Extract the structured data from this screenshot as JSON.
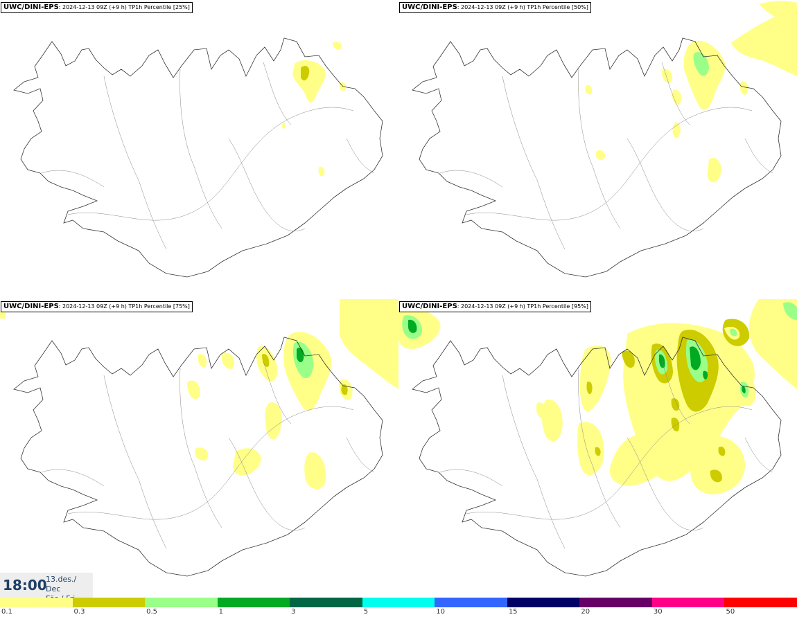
{
  "panels": [
    {
      "model": "UWC/DINI-EPS",
      "run": ": 2024-12-13 09Z (+9 h)",
      "field": " TP1h Percentile [25%]"
    },
    {
      "model": "UWC/DINI-EPS",
      "run": ": 2024-12-13 09Z (+9 h)",
      "field": " TP1h Percentile [50%]"
    },
    {
      "model": "UWC/DINI-EPS",
      "run": ": 2024-12-13 09Z (+9 h)",
      "field": " TP1h Percentile [75%]"
    },
    {
      "model": "UWC/DINI-EPS",
      "run": ": 2024-12-13 09Z (+9 h)",
      "field": " TP1h Percentile [95%]"
    }
  ],
  "time": {
    "hour": "18:00",
    "date_line1": "13.des./ Dec",
    "date_line2": "Fös./ Fri"
  },
  "legend": {
    "labels": [
      "0.1",
      "0.3",
      "0.5",
      "1",
      "3",
      "5",
      "10",
      "15",
      "20",
      "30",
      "50"
    ],
    "colors": [
      "#ffff88",
      "#cccc00",
      "#99ff88",
      "#00aa22",
      "#006644",
      "#00ffee",
      "#3366ff",
      "#000066",
      "#660066",
      "#ff0088",
      "#ff0000"
    ]
  },
  "colors": {
    "light": "#ffff88",
    "mid": "#cccc00",
    "green": "#99ff88",
    "dark": "#00aa22",
    "coast": "#333333"
  }
}
